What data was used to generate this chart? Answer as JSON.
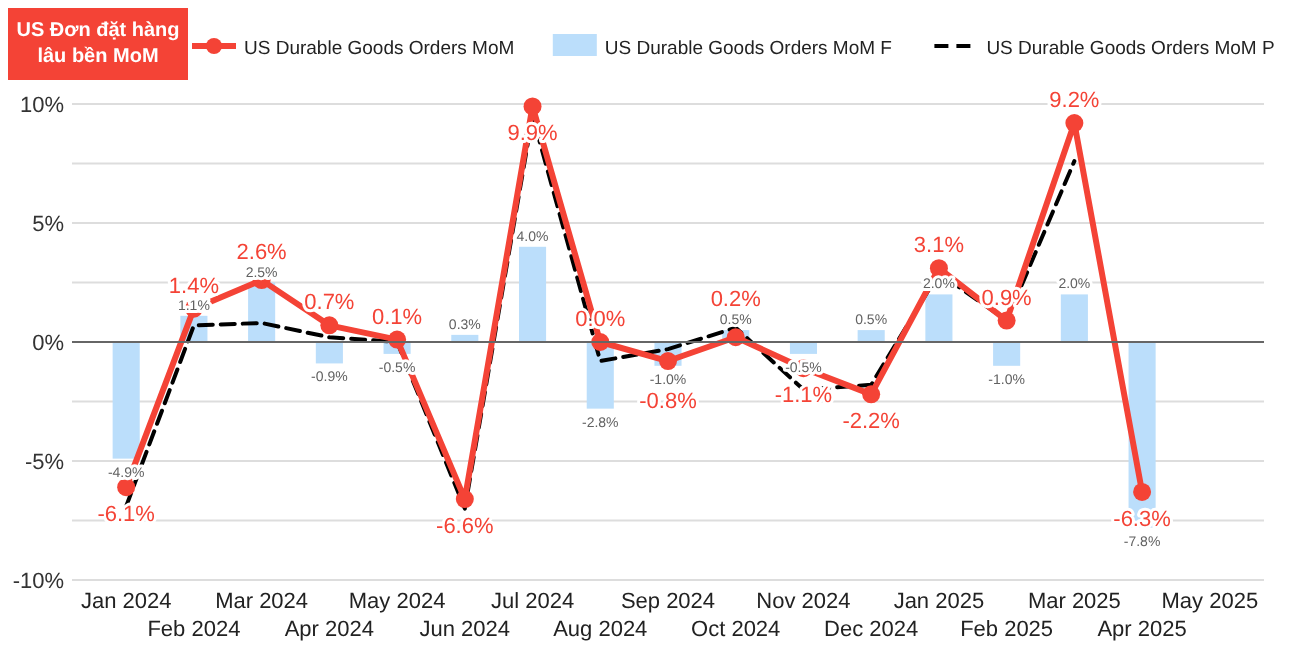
{
  "chart_data": {
    "type": "bar",
    "title": "US Đơn đặt hàng lâu bền MoM",
    "categories": [
      "Jan 2024",
      "Feb 2024",
      "Mar 2024",
      "Apr 2024",
      "May 2024",
      "Jun 2024",
      "Jul 2024",
      "Aug 2024",
      "Sep 2024",
      "Oct 2024",
      "Nov 2024",
      "Dec 2024",
      "Jan 2025",
      "Feb 2025",
      "Mar 2025",
      "Apr 2025",
      "May 2025"
    ],
    "series": [
      {
        "name": "US Durable Goods Orders MoM F",
        "color": "#bbdefb",
        "values": [
          -4.9,
          1.1,
          2.5,
          -0.9,
          -0.5,
          0.3,
          4.0,
          -2.8,
          -1.0,
          0.5,
          -0.5,
          0.5,
          2.0,
          -1.0,
          2.0,
          -7.8,
          null
        ],
        "value_labels": [
          "-4.9%",
          "1.1%",
          "2.5%",
          "-0.9%",
          "-0.5%",
          "0.3%",
          "4.0%",
          "-2.8%",
          "-1.0%",
          "0.5%",
          "-0.5%",
          "0.5%",
          "2.0%",
          "-1.0%",
          "2.0%",
          "-7.8%",
          null
        ]
      },
      {
        "name": "US Durable Goods Orders MoM P",
        "type": "line",
        "color": "#000000",
        "line_style": "dashed",
        "marker": "none",
        "values": [
          -6.9,
          0.7,
          0.8,
          0.2,
          0.0,
          -7.0,
          9.5,
          -0.8,
          -0.3,
          0.6,
          -2.0,
          -1.8,
          2.9,
          0.9,
          7.6,
          null,
          null
        ]
      },
      {
        "name": "US Durable Goods Orders MoM",
        "type": "line",
        "color": "#f44336",
        "line_style": "solid",
        "marker": "circle",
        "values": [
          -6.1,
          1.4,
          2.6,
          0.7,
          0.1,
          -6.6,
          9.9,
          0.0,
          -0.8,
          0.2,
          -1.1,
          -2.2,
          3.1,
          0.9,
          9.2,
          -6.3,
          null
        ],
        "value_labels": [
          "-6.1%",
          "1.4%",
          "2.6%",
          "0.7%",
          "0.1%",
          "-6.6%",
          "9.9%",
          "0.0%",
          "-0.8%",
          "0.2%",
          "-1.1%",
          "-2.2%",
          "3.1%",
          "0.9%",
          "9.2%",
          "-6.3%",
          null
        ]
      }
    ],
    "ylim": [
      -10,
      10
    ],
    "yticks": [
      {
        "value": -10,
        "label": "-10%"
      },
      {
        "value": -7.5,
        "label": null
      },
      {
        "value": -5,
        "label": "-5%"
      },
      {
        "value": -2.5,
        "label": null
      },
      {
        "value": 0,
        "label": "0%"
      },
      {
        "value": 2.5,
        "label": null
      },
      {
        "value": 5,
        "label": "5%"
      },
      {
        "value": 7.5,
        "label": null
      },
      {
        "value": 10,
        "label": "10%"
      }
    ],
    "grid": "y",
    "legend": "top right"
  }
}
